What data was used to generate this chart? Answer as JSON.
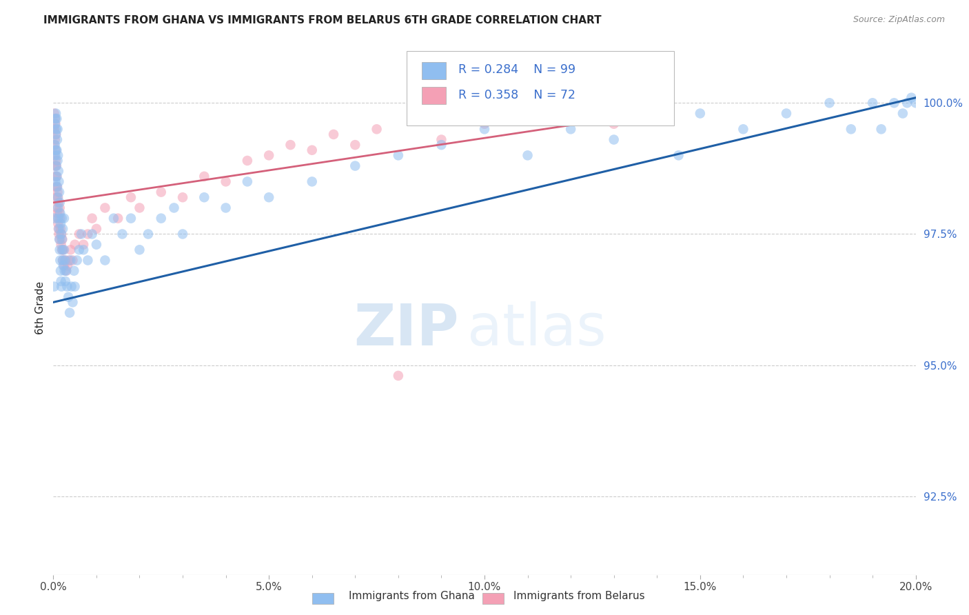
{
  "title": "IMMIGRANTS FROM GHANA VS IMMIGRANTS FROM BELARUS 6TH GRADE CORRELATION CHART",
  "source": "Source: ZipAtlas.com",
  "ylabel": "6th Grade",
  "x_tick_labels": [
    "0.0%",
    "",
    "",
    "",
    "",
    "5.0%",
    "",
    "",
    "",
    "",
    "10.0%",
    "",
    "",
    "",
    "",
    "15.0%",
    "",
    "",
    "",
    "",
    "20.0%"
  ],
  "x_tick_positions": [
    0.0,
    1.0,
    2.0,
    3.0,
    4.0,
    5.0,
    6.0,
    7.0,
    8.0,
    9.0,
    10.0,
    11.0,
    12.0,
    13.0,
    14.0,
    15.0,
    16.0,
    17.0,
    18.0,
    19.0,
    20.0
  ],
  "y_tick_labels": [
    "92.5%",
    "95.0%",
    "97.5%",
    "100.0%"
  ],
  "y_tick_positions": [
    92.5,
    95.0,
    97.5,
    100.0
  ],
  "xlim": [
    0.0,
    20.0
  ],
  "ylim": [
    91.0,
    101.2
  ],
  "legend_ghana": "Immigrants from Ghana",
  "legend_belarus": "Immigrants from Belarus",
  "R_ghana": "0.284",
  "N_ghana": "99",
  "R_belarus": "0.358",
  "N_belarus": "72",
  "color_ghana": "#90BEF0",
  "color_belarus": "#F4A0B5",
  "line_color_ghana": "#1F5FA6",
  "line_color_belarus": "#D4607A",
  "background_color": "#FFFFFF",
  "title_color": "#222222",
  "source_color": "#888888",
  "ylabel_color": "#222222",
  "tick_color_y": "#3B6FCC",
  "tick_color_x": "#444444",
  "watermark_zip": "ZIP",
  "watermark_atlas": "atlas",
  "ghana_x": [
    0.02,
    0.03,
    0.04,
    0.04,
    0.05,
    0.05,
    0.05,
    0.06,
    0.06,
    0.06,
    0.07,
    0.07,
    0.08,
    0.08,
    0.08,
    0.09,
    0.09,
    0.1,
    0.1,
    0.1,
    0.11,
    0.11,
    0.12,
    0.12,
    0.13,
    0.13,
    0.14,
    0.14,
    0.15,
    0.15,
    0.16,
    0.16,
    0.17,
    0.17,
    0.18,
    0.18,
    0.19,
    0.2,
    0.2,
    0.21,
    0.22,
    0.22,
    0.23,
    0.25,
    0.25,
    0.26,
    0.27,
    0.28,
    0.3,
    0.32,
    0.35,
    0.38,
    0.4,
    0.42,
    0.45,
    0.48,
    0.5,
    0.55,
    0.6,
    0.65,
    0.7,
    0.8,
    0.9,
    1.0,
    1.2,
    1.4,
    1.6,
    1.8,
    2.0,
    2.2,
    2.5,
    2.8,
    3.0,
    3.5,
    4.0,
    4.5,
    5.0,
    6.0,
    7.0,
    8.0,
    9.0,
    10.0,
    11.0,
    12.0,
    13.0,
    14.0,
    14.5,
    15.0,
    16.0,
    17.0,
    18.0,
    18.5,
    19.0,
    19.2,
    19.5,
    19.7,
    19.8,
    19.9,
    20.0
  ],
  "ghana_y": [
    96.5,
    97.8,
    99.2,
    99.6,
    98.5,
    99.0,
    99.7,
    99.1,
    99.4,
    99.8,
    98.8,
    99.5,
    98.6,
    99.1,
    99.7,
    98.4,
    99.3,
    98.2,
    98.9,
    99.5,
    98.0,
    99.0,
    97.8,
    98.7,
    97.6,
    98.5,
    97.4,
    98.3,
    97.2,
    98.1,
    97.0,
    97.9,
    96.8,
    97.7,
    96.6,
    97.5,
    96.5,
    97.4,
    97.8,
    97.2,
    97.0,
    97.6,
    96.9,
    97.2,
    97.8,
    96.8,
    97.0,
    96.6,
    96.8,
    96.5,
    96.3,
    96.0,
    97.0,
    96.5,
    96.2,
    96.8,
    96.5,
    97.0,
    97.2,
    97.5,
    97.2,
    97.0,
    97.5,
    97.3,
    97.0,
    97.8,
    97.5,
    97.8,
    97.2,
    97.5,
    97.8,
    98.0,
    97.5,
    98.2,
    98.0,
    98.5,
    98.2,
    98.5,
    98.8,
    99.0,
    99.2,
    99.5,
    99.0,
    99.5,
    99.3,
    99.8,
    99.0,
    99.8,
    99.5,
    99.8,
    100.0,
    99.5,
    100.0,
    99.5,
    100.0,
    99.8,
    100.0,
    100.1,
    100.0
  ],
  "belarus_x": [
    0.01,
    0.02,
    0.02,
    0.03,
    0.03,
    0.04,
    0.04,
    0.04,
    0.05,
    0.05,
    0.05,
    0.06,
    0.06,
    0.06,
    0.07,
    0.07,
    0.08,
    0.08,
    0.09,
    0.09,
    0.1,
    0.1,
    0.11,
    0.11,
    0.12,
    0.12,
    0.13,
    0.14,
    0.15,
    0.15,
    0.16,
    0.17,
    0.18,
    0.19,
    0.2,
    0.21,
    0.22,
    0.23,
    0.25,
    0.28,
    0.3,
    0.33,
    0.36,
    0.4,
    0.45,
    0.5,
    0.6,
    0.7,
    0.8,
    0.9,
    1.0,
    1.2,
    1.5,
    1.8,
    2.0,
    2.5,
    3.0,
    3.5,
    4.0,
    4.5,
    5.0,
    5.5,
    6.0,
    6.5,
    7.0,
    7.5,
    8.0,
    9.0,
    10.0,
    11.0,
    12.0,
    13.0
  ],
  "belarus_y": [
    99.5,
    99.2,
    99.8,
    99.0,
    99.5,
    98.8,
    99.3,
    99.7,
    98.6,
    99.1,
    99.6,
    98.4,
    98.9,
    99.4,
    98.2,
    98.8,
    98.0,
    98.6,
    97.9,
    98.4,
    97.8,
    98.3,
    97.7,
    98.2,
    97.6,
    98.1,
    97.5,
    97.9,
    97.4,
    98.0,
    97.8,
    97.6,
    97.3,
    97.5,
    97.2,
    97.4,
    97.0,
    97.2,
    96.9,
    97.0,
    96.8,
    96.9,
    97.0,
    97.2,
    97.0,
    97.3,
    97.5,
    97.3,
    97.5,
    97.8,
    97.6,
    98.0,
    97.8,
    98.2,
    98.0,
    98.3,
    98.2,
    98.6,
    98.5,
    98.9,
    99.0,
    99.2,
    99.1,
    99.4,
    99.2,
    99.5,
    94.8,
    99.3,
    99.6,
    99.7,
    99.8,
    99.6
  ],
  "ghana_line_x": [
    0.0,
    20.0
  ],
  "ghana_line_y": [
    96.2,
    100.1
  ],
  "belarus_line_x": [
    0.0,
    13.0
  ],
  "belarus_line_y": [
    98.1,
    99.7
  ]
}
